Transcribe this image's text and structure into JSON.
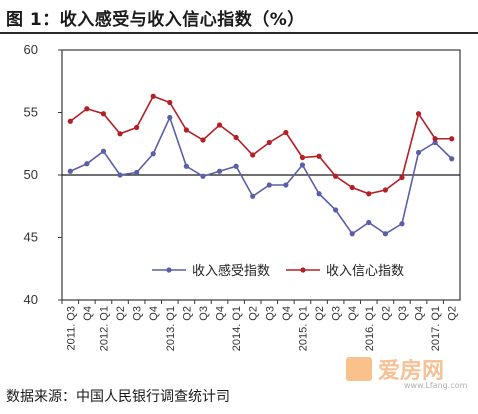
{
  "title": "图 1：收入感受与收入信心指数（%）",
  "source": "数据来源：中国人民银行调查统计司",
  "watermark": {
    "brand": "爱房网",
    "url": "www.Lfang.com"
  },
  "colors": {
    "series1": "#5b5fa8",
    "series2": "#b52027"
  },
  "chart_data": {
    "type": "line",
    "x": [
      "2011. Q3",
      "Q4",
      "2012. Q1",
      "Q2",
      "Q3",
      "Q4",
      "2013. Q1",
      "Q2",
      "Q3",
      "Q4",
      "2014. Q1",
      "Q2",
      "Q3",
      "Q4",
      "2015. Q1",
      "Q2",
      "Q3",
      "Q4",
      "2016. Q1",
      "Q2",
      "Q3",
      "Q4",
      "2017. Q1",
      "Q2"
    ],
    "series": [
      {
        "name": "收入感受指数",
        "values": [
          50.3,
          50.9,
          51.9,
          50.0,
          50.2,
          51.7,
          54.6,
          50.7,
          49.9,
          50.3,
          50.7,
          48.3,
          49.2,
          49.2,
          50.8,
          48.5,
          47.2,
          45.3,
          46.2,
          45.3,
          46.1,
          51.8,
          52.6,
          51.3
        ]
      },
      {
        "name": "收入信心指数",
        "values": [
          54.3,
          55.3,
          54.9,
          53.3,
          53.8,
          56.3,
          55.8,
          53.6,
          52.8,
          54.0,
          53.0,
          51.6,
          52.6,
          53.4,
          51.4,
          51.5,
          49.9,
          49.0,
          48.5,
          48.8,
          49.8,
          54.9,
          52.9,
          52.9
        ]
      }
    ],
    "ylim": [
      40,
      60
    ],
    "yticks": [
      40,
      45,
      50,
      55,
      60
    ],
    "baseline": 50,
    "legend": "inside-bottom-right",
    "grid": false
  }
}
